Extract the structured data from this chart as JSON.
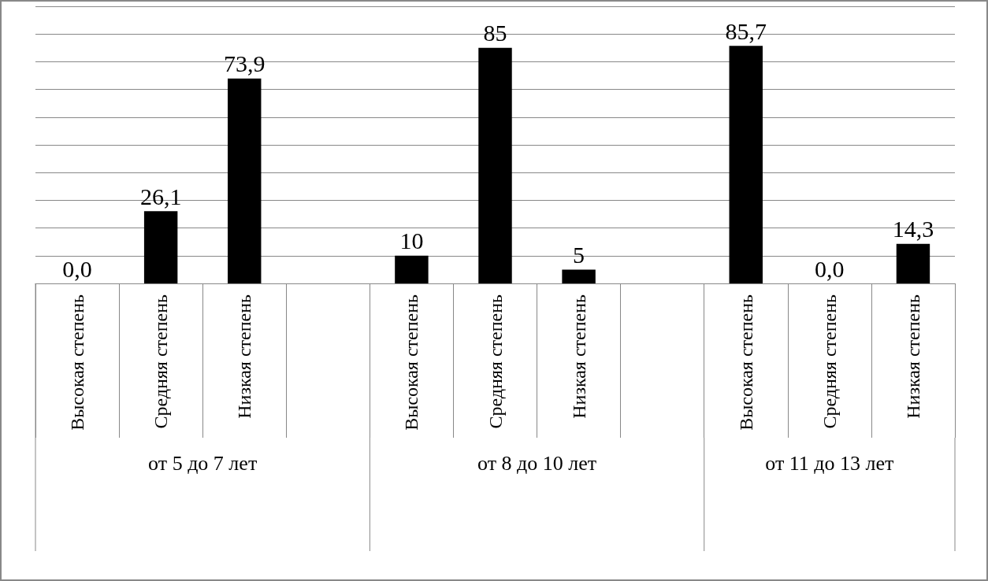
{
  "chart_data": {
    "type": "bar",
    "categories": [
      "Высокая степень",
      "Средняя степень",
      "Низкая степень",
      null,
      "Высокая степень",
      "Средняя степень",
      "Низкая степень",
      null,
      "Высокая степень",
      "Средняя степень",
      "Низкая степень"
    ],
    "values": [
      0,
      26.1,
      73.9,
      null,
      10,
      85,
      5,
      null,
      85.7,
      0,
      14.3
    ],
    "value_labels": [
      "0,0",
      "26,1",
      "73,9",
      null,
      "10",
      "85",
      "5",
      null,
      "85,7",
      "0,0",
      "14,3"
    ],
    "color": "#000000",
    "ylim": [
      0,
      100
    ],
    "yticks": [
      {
        "value": 0,
        "label": null
      },
      {
        "value": 10,
        "label": null
      },
      {
        "value": 20,
        "label": null
      },
      {
        "value": 30,
        "label": null
      },
      {
        "value": 40,
        "label": null
      },
      {
        "value": 50,
        "label": null
      },
      {
        "value": 60,
        "label": null
      },
      {
        "value": 70,
        "label": null
      },
      {
        "value": 80,
        "label": null
      },
      {
        "value": 90,
        "label": null
      },
      {
        "value": 100,
        "label": null
      }
    ],
    "grid": "y",
    "annotations": [
      "от 5 до 7 лет",
      "от 8 до 10 лет",
      "от 11 до 13 лет"
    ]
  }
}
